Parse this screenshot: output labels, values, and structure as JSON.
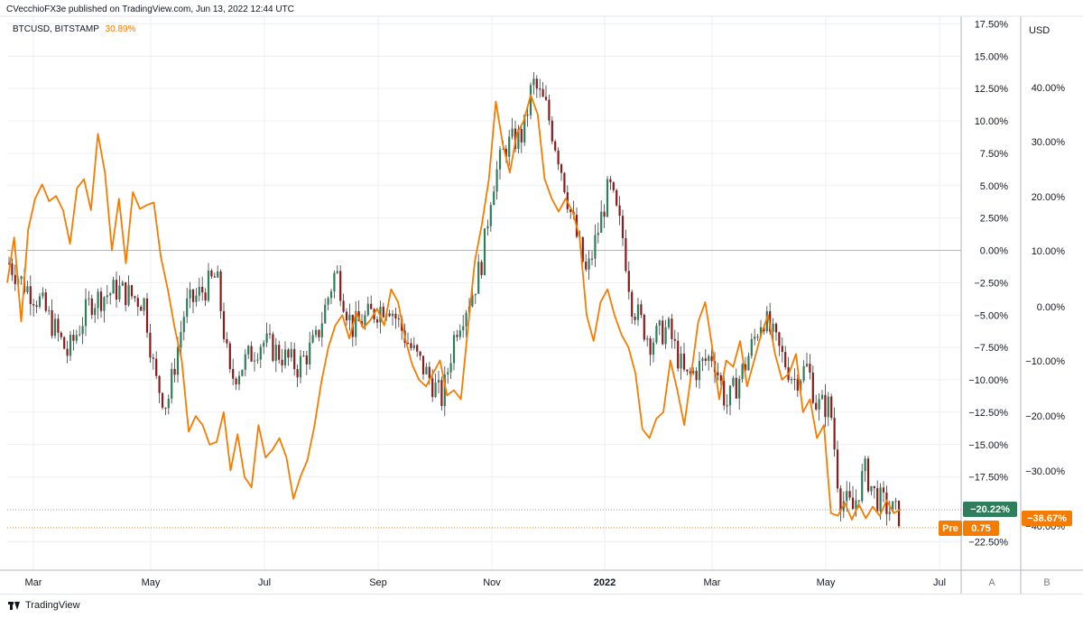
{
  "header": {
    "published": "CVecchioFX3e published on TradingView.com, Jun 13, 2022 12:44 UTC"
  },
  "legend": {
    "symbol": "BTCUSD, BITSTAMP",
    "value": "30.89%"
  },
  "footer": {
    "brand": "TradingView"
  },
  "colors": {
    "line": "#f57c00",
    "up": "#2e7d5b",
    "down": "#8b1a1a",
    "grid": "#eceff3",
    "pre_line": "#f57c00",
    "current_badge": "#2e7d5b"
  },
  "chart_data": {
    "type": "line",
    "x_tick_labels": [
      "Mar",
      "May",
      "Jul",
      "Sep",
      "Nov",
      "2022",
      "Mar",
      "May",
      "Jul"
    ],
    "left_axis": {
      "ticks": [
        "17.50%",
        "15.00%",
        "12.50%",
        "10.00%",
        "7.50%",
        "5.00%",
        "2.50%",
        "0.00%",
        "−2.50%",
        "−5.00%",
        "−7.50%",
        "−10.00%",
        "−12.50%",
        "−15.00%",
        "−17.50%",
        "−22.50%"
      ],
      "range": [
        -22.5,
        17.5
      ]
    },
    "right_axis": {
      "title": "USD",
      "ticks": [
        "40.00%",
        "30.00%",
        "20.00%",
        "10.00%",
        "0.00%",
        "−10.00%",
        "−20.00%",
        "−30.00%",
        "−40.00%"
      ]
    },
    "scale_buttons": [
      "A",
      "B"
    ],
    "badges": {
      "current": "−20.22%",
      "pre_label": "Pre",
      "pre_value": "0.75",
      "line_value": "−38.67%"
    },
    "series": [
      {
        "type": "line",
        "values": [
          -2.5,
          1.0,
          -5.5,
          1.6,
          4.0,
          5.1,
          3.8,
          4.2,
          3.1,
          0.5,
          4.8,
          5.5,
          3.1,
          9.0,
          6.0,
          0.0,
          4.0,
          -1.0,
          4.5,
          3.2,
          3.5,
          3.7,
          -0.5,
          -3.0,
          -6.0,
          -8.5,
          -14.0,
          -12.8,
          -13.5,
          -15.0,
          -14.8,
          -12.5,
          -17.0,
          -14.2,
          -17.5,
          -18.3,
          -13.5,
          -16.0,
          -15.4,
          -14.5,
          -16.0,
          -19.2,
          -17.5,
          -16.2,
          -13.6,
          -10.2,
          -7.5,
          -5.8,
          -5.0,
          -6.8,
          -4.8,
          -6.0,
          -5.4,
          -4.5,
          -5.8,
          -3.0,
          -4.0,
          -6.8,
          -8.8,
          -10.0,
          -10.5,
          -9.5,
          -8.5,
          -11.2,
          -10.8,
          -11.5,
          -6.0,
          -0.8,
          2.0,
          5.5,
          11.5,
          8.2,
          6.0,
          9.0,
          10.0,
          12.0,
          10.5,
          5.5,
          4.0,
          3.0,
          4.0,
          3.0,
          1.0,
          -5.0,
          -7.0,
          -4.0,
          -3.0,
          -5.0,
          -6.5,
          -7.5,
          -9.5,
          -13.8,
          -14.5,
          -13.0,
          -12.5,
          -8.5,
          -10.8,
          -13.5,
          -9.5,
          -5.5,
          -4.0,
          -7.5,
          -11.5,
          -8.5,
          -9.0,
          -7.0,
          -10.5,
          -8.5,
          -6.5,
          -5.0,
          -8.0,
          -10.0,
          -9.5,
          -8.0,
          -12.5,
          -11.5,
          -14.5,
          -13.5,
          -20.3,
          -20.5,
          -19.5,
          -20.8,
          -19.6,
          -20.7,
          -19.8,
          -20.5,
          -19.3,
          -20.3,
          -20.0
        ]
      }
    ],
    "candles": "~290 daily OHLC candles, green = up, red = down, values in left-axis percent"
  }
}
